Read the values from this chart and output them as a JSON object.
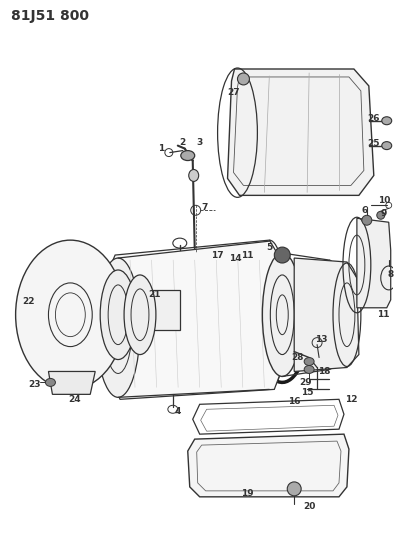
{
  "title": "81J51 800",
  "bg_color": "#ffffff",
  "line_color": "#333333",
  "title_fontsize": 10,
  "label_fontsize": 6.5,
  "fig_width": 3.94,
  "fig_height": 5.33,
  "dpi": 100
}
